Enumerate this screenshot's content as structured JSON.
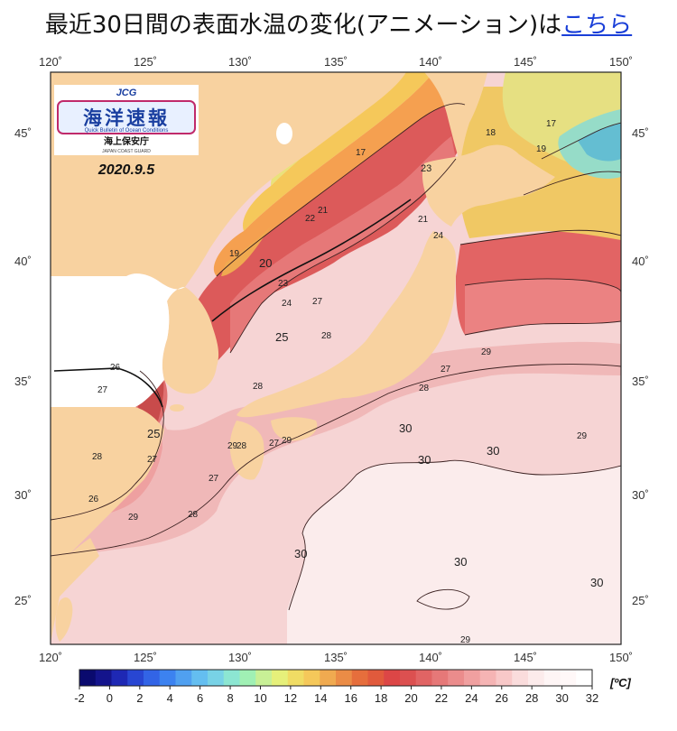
{
  "header": {
    "text": "最近30日間の表面水温の変化(アニメーション)は",
    "link": "こちら"
  },
  "map": {
    "lon_ticks": [
      "120˚",
      "125˚",
      "130˚",
      "135˚",
      "140˚",
      "145˚",
      "150˚"
    ],
    "lat_ticks": [
      "45˚",
      "40˚",
      "35˚",
      "30˚",
      "25˚"
    ],
    "contour_labels": [
      {
        "text": "17"
      },
      {
        "text": "18"
      },
      {
        "text": "17"
      },
      {
        "text": "19"
      },
      {
        "text": "23"
      },
      {
        "text": "21"
      },
      {
        "text": "22"
      },
      {
        "text": "21"
      },
      {
        "text": "19"
      },
      {
        "text": "20"
      },
      {
        "text": "23"
      },
      {
        "text": "24"
      },
      {
        "text": "27"
      },
      {
        "text": "25"
      },
      {
        "text": "28"
      },
      {
        "text": "24"
      },
      {
        "text": "29"
      },
      {
        "text": "26"
      },
      {
        "text": "27"
      },
      {
        "text": "27"
      },
      {
        "text": "28"
      },
      {
        "text": "28"
      },
      {
        "text": "25"
      },
      {
        "text": "27"
      },
      {
        "text": "27"
      },
      {
        "text": "29"
      },
      {
        "text": "28"
      },
      {
        "text": "27"
      },
      {
        "text": "28"
      },
      {
        "text": "26"
      },
      {
        "text": "29"
      },
      {
        "text": "28"
      },
      {
        "text": "30"
      },
      {
        "text": "30"
      },
      {
        "text": "30"
      },
      {
        "text": "29"
      },
      {
        "text": "30"
      },
      {
        "text": "30"
      },
      {
        "text": "30"
      },
      {
        "text": "29"
      },
      {
        "text": "29"
      }
    ]
  },
  "logo": {
    "top": "JCG",
    "title": "海洋速報",
    "subtitle_en": "Quick Bulletin of Ocean Conditions",
    "org": "海上保安庁",
    "org_en": "JAPAN COAST GUARD"
  },
  "date": "2020.9.5",
  "colorbar": {
    "ticks": [
      "-2",
      "0",
      "2",
      "4",
      "6",
      "8",
      "10",
      "12",
      "14",
      "16",
      "18",
      "20",
      "22",
      "24",
      "26",
      "28",
      "30",
      "32"
    ],
    "unit": "[ºC]",
    "colors": [
      "#0a0a6e",
      "#14148c",
      "#1e28b4",
      "#2846d2",
      "#3264e6",
      "#3c82f0",
      "#50a0f0",
      "#64bef0",
      "#78d2e6",
      "#8ce6d2",
      "#a0f0b4",
      "#c8f096",
      "#e6f07a",
      "#f0dc64",
      "#f5c85a",
      "#f0aa50",
      "#eb8c46",
      "#e66e3c",
      "#e15a3c",
      "#dc4646",
      "#dc5050",
      "#e16464",
      "#e67878",
      "#eb8c8c",
      "#f0a0a0",
      "#f5b4b4",
      "#f8c8c8",
      "#fadcdc",
      "#fcebeb",
      "#fef5f5",
      "#fff8f8",
      "#ffffff"
    ]
  }
}
